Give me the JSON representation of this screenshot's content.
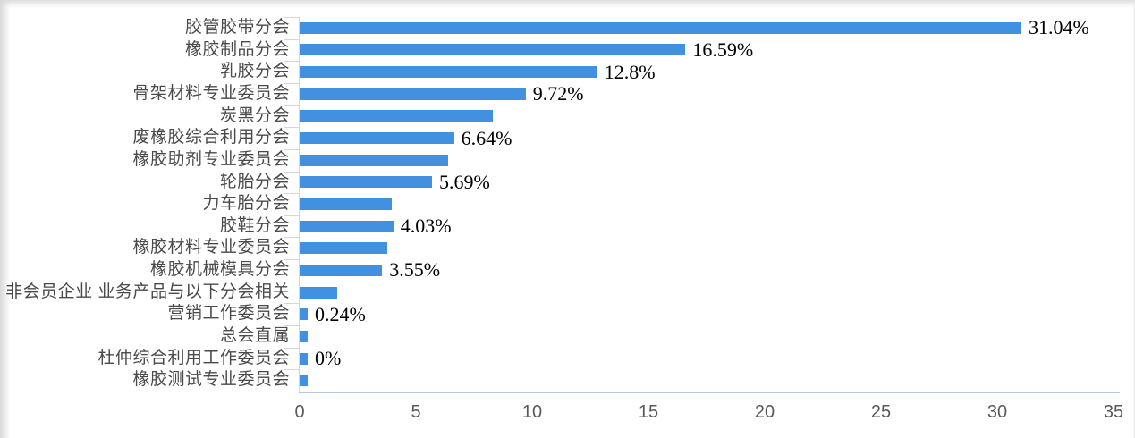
{
  "chart_data": {
    "type": "bar",
    "orientation": "horizontal",
    "title": "",
    "xlabel": "",
    "ylabel": "",
    "categories": [
      "胶管胶带分会",
      "橡胶制品分会",
      "乳胶分会",
      "骨架材料专业委员会",
      "炭黑分会",
      "废橡胶综合利用分会",
      "橡胶助剂专业委员会",
      "轮胎分会",
      "力车胎分会",
      "胶鞋分会",
      "橡胶材料专业委员会",
      "橡胶机械模具分会",
      "非会员企业 业务产品与以下分会相关",
      "营销工作委员会",
      "总会直属",
      "杜仲综合利用工作委员会",
      "橡胶测试专业委员会"
    ],
    "values": [
      31.04,
      16.59,
      12.8,
      9.72,
      8.3,
      6.64,
      6.4,
      5.69,
      3.98,
      4.03,
      3.78,
      3.55,
      1.6,
      0.24,
      0.3,
      0,
      0.3
    ],
    "data_labels": [
      "31.04%",
      "16.59%",
      "12.8%",
      "9.72%",
      "",
      "6.64%",
      "",
      "5.69%",
      "",
      "4.03%",
      "",
      "3.55%",
      "",
      "0.24%",
      "",
      "0%",
      ""
    ],
    "x_ticks": [
      0,
      5,
      10,
      15,
      20,
      25,
      30,
      35
    ],
    "xlim": [
      0,
      35
    ],
    "grid": false,
    "legend": false,
    "bar_color": "#4191E0",
    "y_axis_color": "#d6d6d6",
    "x_axis_color": "#b3c9dd",
    "category_label_color": "#4a4a4a",
    "tick_label_color": "#595959",
    "data_label_color": "#000000"
  }
}
